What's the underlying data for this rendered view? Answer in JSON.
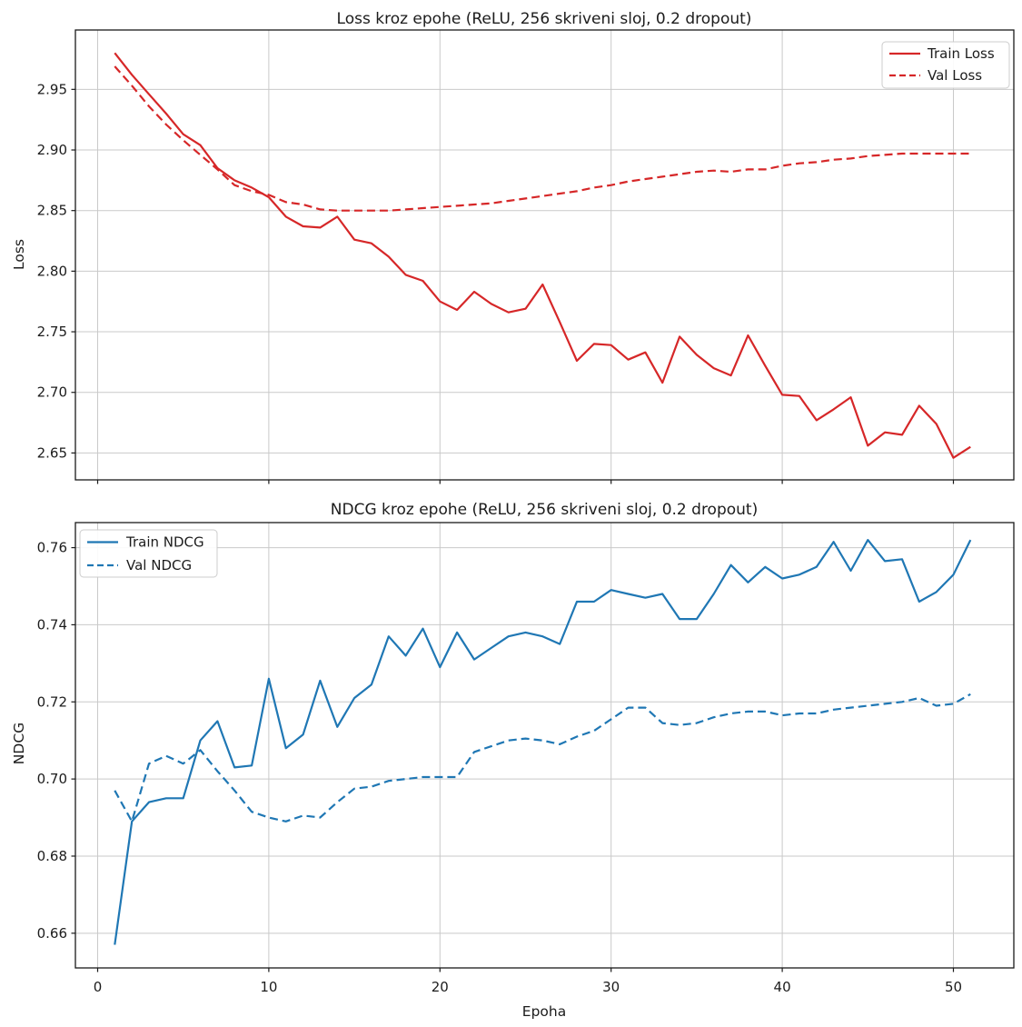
{
  "figure": {
    "background": "#ffffff",
    "grid_color": "#c9c9c9",
    "spine_color": "#1a1a1a",
    "red": "#d62728",
    "blue": "#1f77b4"
  },
  "chart_data": [
    {
      "type": "line",
      "title": "Loss kroz epohe (ReLU, 256 skriveni sloj, 0.2 dropout)",
      "xlabel": "",
      "ylabel": "Loss",
      "grid": true,
      "legend_position": "upper right",
      "xlim": [
        -1.3,
        53.53
      ],
      "ylim": [
        2.6278,
        2.999
      ],
      "xticks": [
        0,
        10,
        20,
        30,
        40,
        50
      ],
      "xtick_labels": [],
      "yticks": [
        2.65,
        2.7,
        2.75,
        2.8,
        2.85,
        2.9,
        2.95
      ],
      "ytick_labels": [
        "2.65",
        "2.70",
        "2.75",
        "2.80",
        "2.85",
        "2.90",
        "2.95"
      ],
      "x": [
        1,
        2,
        3,
        4,
        5,
        6,
        7,
        8,
        9,
        10,
        11,
        12,
        13,
        14,
        15,
        16,
        17,
        18,
        19,
        20,
        21,
        22,
        23,
        24,
        25,
        26,
        27,
        28,
        29,
        30,
        31,
        32,
        33,
        34,
        35,
        36,
        37,
        38,
        39,
        40,
        41,
        42,
        43,
        44,
        45,
        46,
        47,
        48,
        49,
        50,
        51
      ],
      "series": [
        {
          "name": "Train Loss",
          "style": "solid",
          "color": "#d62728",
          "values": [
            2.98,
            2.962,
            2.946,
            2.93,
            2.913,
            2.904,
            2.885,
            2.875,
            2.869,
            2.861,
            2.845,
            2.837,
            2.836,
            2.845,
            2.826,
            2.823,
            2.812,
            2.797,
            2.792,
            2.775,
            2.768,
            2.783,
            2.773,
            2.766,
            2.769,
            2.789,
            2.758,
            2.726,
            2.74,
            2.739,
            2.727,
            2.733,
            2.708,
            2.746,
            2.731,
            2.72,
            2.714,
            2.747,
            2.722,
            2.698,
            2.697,
            2.677,
            2.686,
            2.696,
            2.656,
            2.667,
            2.665,
            2.689,
            2.674,
            2.646,
            2.655
          ]
        },
        {
          "name": "Val Loss",
          "style": "dashed",
          "color": "#d62728",
          "values": [
            2.969,
            2.953,
            2.936,
            2.921,
            2.908,
            2.896,
            2.884,
            2.871,
            2.866,
            2.863,
            2.857,
            2.855,
            2.851,
            2.85,
            2.85,
            2.85,
            2.85,
            2.851,
            2.852,
            2.853,
            2.854,
            2.855,
            2.856,
            2.858,
            2.86,
            2.862,
            2.864,
            2.866,
            2.869,
            2.871,
            2.874,
            2.876,
            2.878,
            2.88,
            2.882,
            2.883,
            2.882,
            2.884,
            2.884,
            2.887,
            2.889,
            2.89,
            2.892,
            2.893,
            2.895,
            2.896,
            2.897,
            2.897,
            2.897,
            2.897,
            2.897
          ]
        }
      ]
    },
    {
      "type": "line",
      "title": "NDCG kroz epohe (ReLU, 256 skriveni sloj, 0.2 dropout)",
      "xlabel": "Epoha",
      "ylabel": "NDCG",
      "grid": true,
      "legend_position": "upper left",
      "xlim": [
        -1.3,
        53.53
      ],
      "ylim": [
        0.651,
        0.7665
      ],
      "xticks": [
        0,
        10,
        20,
        30,
        40,
        50
      ],
      "xtick_labels": [
        "0",
        "10",
        "20",
        "30",
        "40",
        "50"
      ],
      "yticks": [
        0.66,
        0.68,
        0.7,
        0.72,
        0.74,
        0.76
      ],
      "ytick_labels": [
        "0.66",
        "0.68",
        "0.70",
        "0.72",
        "0.74",
        "0.76"
      ],
      "x": [
        1,
        2,
        3,
        4,
        5,
        6,
        7,
        8,
        9,
        10,
        11,
        12,
        13,
        14,
        15,
        16,
        17,
        18,
        19,
        20,
        21,
        22,
        23,
        24,
        25,
        26,
        27,
        28,
        29,
        30,
        31,
        32,
        33,
        34,
        35,
        36,
        37,
        38,
        39,
        40,
        41,
        42,
        43,
        44,
        45,
        46,
        47,
        48,
        49,
        50,
        51
      ],
      "series": [
        {
          "name": "Train NDCG",
          "style": "solid",
          "color": "#1f77b4",
          "values": [
            0.657,
            0.689,
            0.694,
            0.695,
            0.695,
            0.71,
            0.715,
            0.703,
            0.7035,
            0.726,
            0.708,
            0.7115,
            0.7255,
            0.7135,
            0.721,
            0.7245,
            0.737,
            0.732,
            0.739,
            0.729,
            0.738,
            0.731,
            0.734,
            0.737,
            0.738,
            0.737,
            0.735,
            0.746,
            0.746,
            0.749,
            0.748,
            0.747,
            0.748,
            0.7415,
            0.7415,
            0.748,
            0.7555,
            0.751,
            0.755,
            0.752,
            0.753,
            0.755,
            0.7615,
            0.754,
            0.762,
            0.7565,
            0.757,
            0.746,
            0.7485,
            0.753,
            0.762
          ]
        },
        {
          "name": "Val NDCG",
          "style": "dashed",
          "color": "#1f77b4",
          "values": [
            0.697,
            0.689,
            0.704,
            0.706,
            0.704,
            0.7075,
            0.702,
            0.697,
            0.6915,
            0.69,
            0.689,
            0.6905,
            0.69,
            0.694,
            0.6975,
            0.698,
            0.6995,
            0.7,
            0.7005,
            0.7005,
            0.7005,
            0.707,
            0.7085,
            0.71,
            0.7105,
            0.71,
            0.709,
            0.711,
            0.7125,
            0.7155,
            0.7185,
            0.7185,
            0.7145,
            0.714,
            0.7145,
            0.716,
            0.717,
            0.7175,
            0.7175,
            0.7165,
            0.717,
            0.717,
            0.718,
            0.7185,
            0.719,
            0.7195,
            0.72,
            0.721,
            0.719,
            0.7195,
            0.722
          ]
        }
      ]
    }
  ]
}
